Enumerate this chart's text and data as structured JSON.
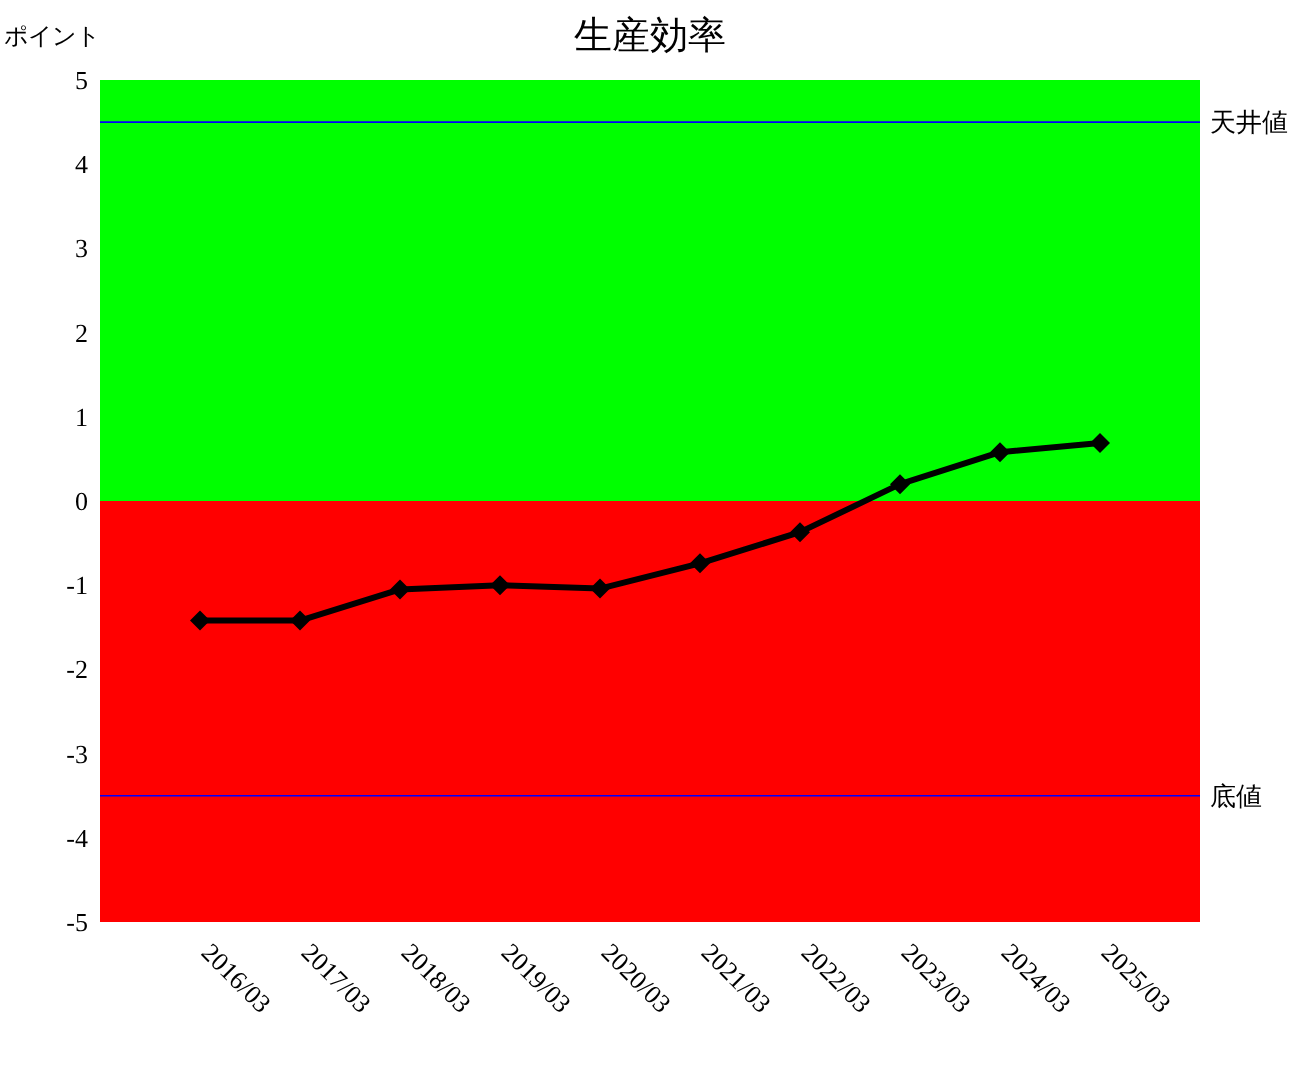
{
  "chart_data": {
    "type": "line",
    "title": "生産効率",
    "ylabel": "ポイント",
    "categories": [
      "2016/03",
      "2017/03",
      "2018/03",
      "2019/03",
      "2020/03",
      "2021/03",
      "2022/03",
      "2023/03",
      "2024/03",
      "2025/03"
    ],
    "series": [
      {
        "color": "#000000",
        "values": [
          -1.42,
          -1.42,
          -1.05,
          -1.0,
          -1.04,
          -0.74,
          -0.37,
          0.2,
          0.58,
          0.69
        ]
      }
    ],
    "ylim": [
      -5,
      5
    ],
    "yticks": [
      -5,
      -4,
      -3,
      -2,
      -1,
      0,
      1,
      2,
      3,
      4,
      5
    ],
    "marker": "diamond",
    "line_style": "solid",
    "bands": [
      {
        "axis": "y",
        "from": 0,
        "to": 5,
        "color": "#00ff00"
      },
      {
        "axis": "y",
        "from": -5,
        "to": 0,
        "color": "#ff0000"
      }
    ],
    "ref_lines": [
      {
        "axis": "y",
        "value": 4.5,
        "label": "天井値",
        "color": "#0000ff"
      },
      {
        "axis": "y",
        "value": -3.5,
        "label": "底値",
        "color": "#0000ff"
      }
    ]
  }
}
